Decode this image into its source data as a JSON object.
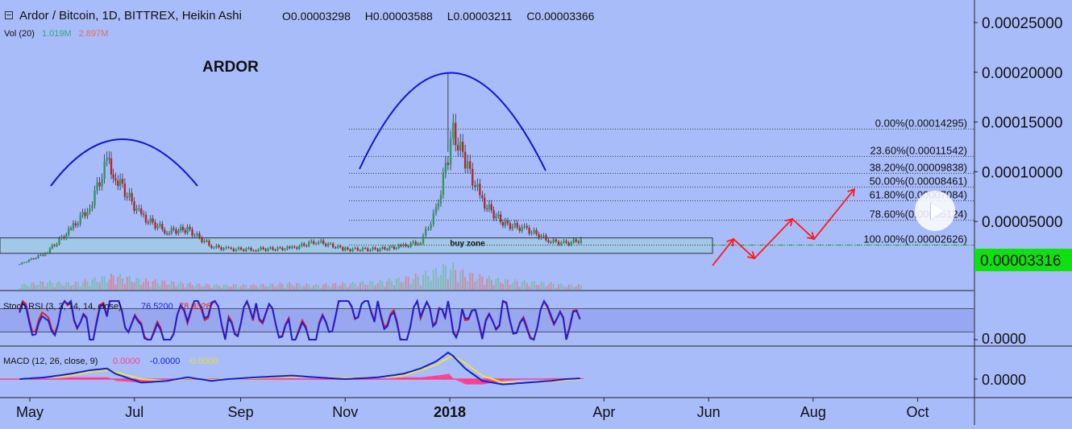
{
  "header": {
    "title": "Ardor / Bitcoin, 1D, BITTREX, Heikin Ashi",
    "open": "O0.00003298",
    "high": "H0.00003588",
    "low": "L0.00003211",
    "close": "C0.00003366",
    "vol_label": "Vol (20)",
    "vol_value1": "1.019M",
    "vol_value2": "2.897M"
  },
  "colors": {
    "background": "#a8bcfa",
    "up": "#2f9a5a",
    "down": "#b02a2a",
    "arc": "#1414d2",
    "arrow": "#ff1a1a",
    "price_tag": "#10e010",
    "rsi_k": "#1f1fd0",
    "rsi_d": "#e02020",
    "macd_line": "#1020d0",
    "signal_line": "#f0e040",
    "histogram": "#ff3c8c"
  },
  "chart_data": [
    {
      "type": "line",
      "title": "ARDOR",
      "subtitle": "Ardor / Bitcoin, 1D, BITTREX, Heikin Ashi",
      "x_ticks": [
        "May",
        "Jul",
        "Sep",
        "Nov",
        "2018",
        "Apr",
        "Jun",
        "Aug",
        "Oct"
      ],
      "y_ticks": [
        "0.00025000",
        "0.00020000",
        "0.00015000",
        "0.00010000",
        "0.00005000"
      ],
      "ylim": [
        0,
        0.00025
      ],
      "last_price": "0.00003316",
      "series": [
        {
          "name": "",
          "x": [
            "2017-04-25",
            "2017-05-10",
            "2017-05-25",
            "2017-06-05",
            "2017-06-15",
            "2017-06-20",
            "2017-07-05",
            "2017-07-20",
            "2017-08-01",
            "2017-08-15",
            "2017-08-25",
            "2017-09-10",
            "2017-10-01",
            "2017-10-15",
            "2017-11-01",
            "2017-11-20",
            "2017-12-05",
            "2017-12-15",
            "2017-12-24",
            "2017-12-31",
            "2018-01-03",
            "2018-01-10",
            "2018-01-20",
            "2018-02-01",
            "2018-02-15",
            "2018-03-01",
            "2018-03-10",
            "2018-03-20"
          ],
          "values": [
            7e-06,
            1.8e-05,
            4.2e-05,
            6.5e-05,
            0.00011,
            9.5e-05,
            5.5e-05,
            4e-05,
            4.2e-05,
            2.5e-05,
            2.2e-05,
            2.2e-05,
            2.3e-05,
            3e-05,
            2.2e-05,
            2.2e-05,
            2.5e-05,
            3e-05,
            6e-05,
            0.000115,
            0.00014,
            0.00011,
            7e-05,
            4.8e-05,
            4.2e-05,
            3e-05,
            2.8e-05,
            3.2e-05
          ]
        }
      ],
      "volume": [
        0.3,
        0.5,
        0.4,
        0.6,
        0.8,
        0.9,
        0.6,
        0.5,
        0.4,
        0.3,
        0.3,
        0.3,
        0.4,
        0.3,
        0.4,
        0.5,
        0.7,
        0.9,
        1.2,
        1.5,
        1.4,
        1.0,
        0.8,
        0.6,
        0.5,
        0.4,
        0.3,
        0.3
      ],
      "fibonacci": [
        {
          "label": "0.00%(0.00014295)",
          "value": 0.00014295
        },
        {
          "label": "23.60%(0.00011542)",
          "value": 0.00011542
        },
        {
          "label": "38.20%(0.00009838)",
          "value": 9.838e-05
        },
        {
          "label": "50.00%(0.00008461)",
          "value": 8.461e-05
        },
        {
          "label": "61.80%(0.00007084)",
          "value": 7.084e-05
        },
        {
          "label": "78.60%(0.00005124)",
          "value": 5.124e-05
        },
        {
          "label": "100.00%(0.00002626)",
          "value": 2.626e-05
        }
      ],
      "annotations": [
        "ARDOR",
        "buy zone"
      ]
    },
    {
      "type": "line",
      "title": "Stoch RSI (3, 3, 14, 14, close)",
      "series": [
        {
          "name": "76.5200",
          "values": [
            0.7,
            0.2,
            0.9,
            0.1,
            0.8,
            0.9,
            0.1,
            0.05,
            0.8,
            0.9,
            0.2,
            0.9,
            0.1,
            0.1,
            0.9,
            0.8,
            0.1,
            0.9,
            0.3,
            0.9,
            0.2,
            0.9,
            0.1,
            0.8,
            0.1,
            0.9,
            0.1,
            0.8
          ]
        },
        {
          "name": "78.9326",
          "values": [
            0.75,
            0.3,
            0.85,
            0.15,
            0.85,
            0.85,
            0.15,
            0.1,
            0.75,
            0.85,
            0.25,
            0.85,
            0.15,
            0.15,
            0.85,
            0.85,
            0.15,
            0.85,
            0.35,
            0.85,
            0.25,
            0.85,
            0.15,
            0.75,
            0.15,
            0.85,
            0.15,
            0.8
          ]
        }
      ],
      "y_ticks": [
        "0.0000"
      ]
    },
    {
      "type": "line",
      "title": "MACD (12, 26, close, 9)",
      "series": [
        {
          "name": "0.0000",
          "values": [
            0.0,
            0.1,
            0.3,
            0.5,
            0.6,
            0.3,
            -0.2,
            -0.1,
            0.1,
            -0.1,
            0.0,
            0.1,
            0.2,
            0.1,
            0.0,
            0.1,
            0.3,
            0.6,
            1.0,
            1.5,
            1.3,
            0.6,
            -0.1,
            -0.3,
            -0.2,
            -0.1,
            0.0,
            0.05
          ]
        },
        {
          "name": "-0.0000",
          "values": [
            0.0,
            0.1,
            0.2,
            0.4,
            0.5,
            0.4,
            0.0,
            -0.1,
            0.05,
            -0.05,
            0.0,
            0.05,
            0.15,
            0.1,
            0.05,
            0.1,
            0.2,
            0.5,
            0.8,
            1.2,
            1.3,
            0.9,
            0.2,
            -0.2,
            -0.2,
            -0.15,
            -0.05,
            0.0
          ]
        },
        {
          "name": "-0.0000",
          "values": [
            0.0,
            0.0,
            0.1,
            0.1,
            0.1,
            -0.1,
            -0.2,
            0.0,
            0.05,
            -0.05,
            0.0,
            0.05,
            0.05,
            0.0,
            -0.05,
            0.0,
            0.1,
            0.1,
            0.2,
            0.3,
            0.0,
            -0.3,
            -0.3,
            -0.1,
            0.0,
            0.05,
            0.05,
            0.05
          ]
        }
      ],
      "y_ticks": [
        "0.0000"
      ]
    }
  ]
}
